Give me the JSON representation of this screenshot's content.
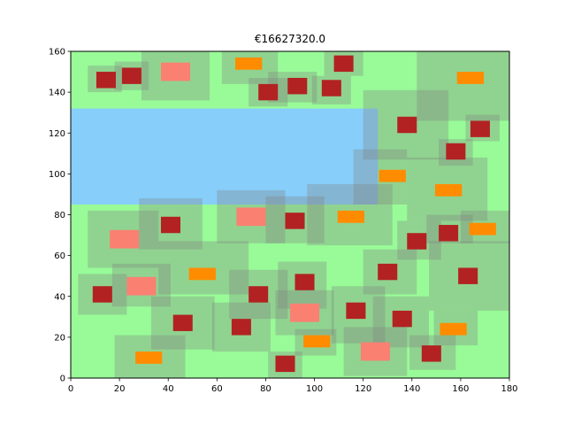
{
  "chart_data": {
    "type": "heatmap",
    "title": "€16627320.0",
    "xlabel": "",
    "ylabel": "",
    "xlim": [
      0,
      180
    ],
    "ylim": [
      0,
      160
    ],
    "xticks": [
      0,
      20,
      40,
      60,
      80,
      100,
      120,
      140,
      160,
      180
    ],
    "yticks": [
      0,
      20,
      40,
      60,
      80,
      100,
      120,
      140,
      160
    ],
    "grid": false,
    "colors": {
      "background": "#98fb98",
      "water": "#87cefa",
      "zone": "#808080",
      "building": "#b22222",
      "salmon": "#fa8072",
      "orange": "#ff8c00"
    },
    "water": [
      {
        "x0": 0,
        "x1": 126,
        "y0": 85,
        "y1": 132
      }
    ],
    "zones": [
      {
        "x0": 7,
        "x1": 21,
        "y0": 140,
        "y1": 153
      },
      {
        "x0": 18,
        "x1": 32,
        "y0": 141,
        "y1": 155
      },
      {
        "x0": 29,
        "x1": 57,
        "y0": 136,
        "y1": 160
      },
      {
        "x0": 62,
        "x1": 85,
        "y0": 144,
        "y1": 160
      },
      {
        "x0": 73,
        "x1": 89,
        "y0": 133,
        "y1": 147
      },
      {
        "x0": 81,
        "x1": 101,
        "y0": 135,
        "y1": 150
      },
      {
        "x0": 99,
        "x1": 115,
        "y0": 134,
        "y1": 148
      },
      {
        "x0": 104,
        "x1": 120,
        "y0": 148,
        "y1": 161
      },
      {
        "x0": 120,
        "x1": 155,
        "y0": 107,
        "y1": 141
      },
      {
        "x0": 142,
        "x1": 180,
        "y0": 126,
        "y1": 160
      },
      {
        "x0": 162,
        "x1": 176,
        "y0": 116,
        "y1": 129
      },
      {
        "x0": 151,
        "x1": 165,
        "y0": 104,
        "y1": 117
      },
      {
        "x0": 116,
        "x1": 138,
        "y0": 85,
        "y1": 112
      },
      {
        "x0": 138,
        "x1": 171,
        "y0": 77,
        "y1": 108
      },
      {
        "x0": 7,
        "x1": 36,
        "y0": 54,
        "y1": 82
      },
      {
        "x0": 28,
        "x1": 54,
        "y0": 63,
        "y1": 88
      },
      {
        "x0": 60,
        "x1": 88,
        "y0": 66,
        "y1": 92
      },
      {
        "x0": 80,
        "x1": 104,
        "y0": 66,
        "y1": 89
      },
      {
        "x0": 97,
        "x1": 132,
        "y0": 65,
        "y1": 95
      },
      {
        "x0": 134,
        "x1": 152,
        "y0": 58,
        "y1": 77
      },
      {
        "x0": 146,
        "x1": 165,
        "y0": 66,
        "y1": 80
      },
      {
        "x0": 160,
        "x1": 180,
        "y0": 66,
        "y1": 82
      },
      {
        "x0": 120,
        "x1": 142,
        "y0": 41,
        "y1": 63
      },
      {
        "x0": 147,
        "x1": 180,
        "y0": 33,
        "y1": 67
      },
      {
        "x0": 3,
        "x1": 23,
        "y0": 31,
        "y1": 51
      },
      {
        "x0": 17,
        "x1": 41,
        "y0": 35,
        "y1": 56
      },
      {
        "x0": 36,
        "x1": 73,
        "y0": 41,
        "y1": 67
      },
      {
        "x0": 65,
        "x1": 89,
        "y0": 29,
        "y1": 53
      },
      {
        "x0": 85,
        "x1": 105,
        "y0": 34,
        "y1": 57
      },
      {
        "x0": 33,
        "x1": 59,
        "y0": 14,
        "y1": 40
      },
      {
        "x0": 58,
        "x1": 82,
        "y0": 13,
        "y1": 37
      },
      {
        "x0": 84,
        "x1": 108,
        "y0": 21,
        "y1": 43
      },
      {
        "x0": 107,
        "x1": 129,
        "y0": 17,
        "y1": 45
      },
      {
        "x0": 124,
        "x1": 147,
        "y0": 15,
        "y1": 40
      },
      {
        "x0": 149,
        "x1": 167,
        "y0": 16,
        "y1": 33
      },
      {
        "x0": 18,
        "x1": 47,
        "y0": 0,
        "y1": 21
      },
      {
        "x0": 81,
        "x1": 95,
        "y0": 0,
        "y1": 13
      },
      {
        "x0": 92,
        "x1": 109,
        "y0": 11,
        "y1": 24
      },
      {
        "x0": 112,
        "x1": 138,
        "y0": 1,
        "y1": 25
      },
      {
        "x0": 139,
        "x1": 158,
        "y0": 4,
        "y1": 21
      }
    ],
    "buildings": [
      {
        "x": 14.5,
        "y": 146,
        "color": "building"
      },
      {
        "x": 25,
        "y": 148,
        "color": "building"
      },
      {
        "x": 43,
        "y": 150,
        "color": "salmon"
      },
      {
        "x": 73,
        "y": 154,
        "color": "orange"
      },
      {
        "x": 81,
        "y": 140,
        "color": "building"
      },
      {
        "x": 93,
        "y": 143,
        "color": "building"
      },
      {
        "x": 107,
        "y": 142,
        "color": "building"
      },
      {
        "x": 112,
        "y": 154,
        "color": "building"
      },
      {
        "x": 164,
        "y": 147,
        "color": "orange"
      },
      {
        "x": 138,
        "y": 124,
        "color": "building"
      },
      {
        "x": 168,
        "y": 122,
        "color": "building"
      },
      {
        "x": 158,
        "y": 111,
        "color": "building"
      },
      {
        "x": 132,
        "y": 99,
        "color": "orange"
      },
      {
        "x": 155,
        "y": 92,
        "color": "orange"
      },
      {
        "x": 22,
        "y": 68,
        "color": "salmon"
      },
      {
        "x": 41,
        "y": 75,
        "color": "building"
      },
      {
        "x": 74,
        "y": 79,
        "color": "salmon"
      },
      {
        "x": 92,
        "y": 77,
        "color": "building"
      },
      {
        "x": 115,
        "y": 79,
        "color": "orange"
      },
      {
        "x": 142,
        "y": 67,
        "color": "building"
      },
      {
        "x": 155,
        "y": 71,
        "color": "building"
      },
      {
        "x": 169,
        "y": 73,
        "color": "orange"
      },
      {
        "x": 130,
        "y": 52,
        "color": "building"
      },
      {
        "x": 163,
        "y": 50,
        "color": "building"
      },
      {
        "x": 13,
        "y": 41,
        "color": "building"
      },
      {
        "x": 29,
        "y": 45,
        "color": "salmon"
      },
      {
        "x": 54,
        "y": 51,
        "color": "orange"
      },
      {
        "x": 77,
        "y": 41,
        "color": "building"
      },
      {
        "x": 96,
        "y": 47,
        "color": "building"
      },
      {
        "x": 46,
        "y": 27,
        "color": "building"
      },
      {
        "x": 70,
        "y": 25,
        "color": "building"
      },
      {
        "x": 96,
        "y": 32,
        "color": "salmon"
      },
      {
        "x": 117,
        "y": 33,
        "color": "building"
      },
      {
        "x": 136,
        "y": 29,
        "color": "building"
      },
      {
        "x": 157,
        "y": 24,
        "color": "orange"
      },
      {
        "x": 32,
        "y": 10,
        "color": "orange"
      },
      {
        "x": 88,
        "y": 7,
        "color": "building"
      },
      {
        "x": 101,
        "y": 18,
        "color": "orange"
      },
      {
        "x": 125,
        "y": 13,
        "color": "salmon"
      },
      {
        "x": 148,
        "y": 12,
        "color": "building"
      }
    ],
    "building_sizes": {
      "building": [
        8,
        8
      ],
      "salmon": [
        12,
        9
      ],
      "orange": [
        11,
        6
      ]
    }
  }
}
